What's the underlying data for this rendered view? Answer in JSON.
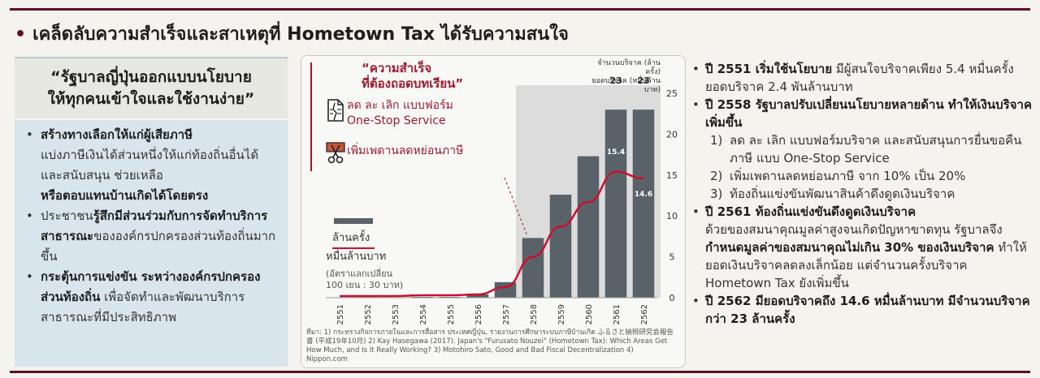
{
  "title": "เคล็ดลับความสำเร็จและสาเหตุที่ Hometown Tax ได้รับความสนใจ",
  "left": {
    "heading_line1": "“รัฐบาลญี่ปุ่นออกแบบนโยบาย",
    "heading_line2": "ให้ทุกคนเข้าใจและใช้งานง่าย”",
    "items": [
      {
        "bold1": "สร้างทางเลือกให้แก่ผู้เสียภาษี",
        "text": "แบ่งภาษีเงินได้ส่วนหนึ่งให้แก่ท้องถิ่นอื่นได้ และสนับสนุน ช่วยเหลือ",
        "bold2": "หรือตอบแทนบ้านเกิดได้โดยตรง"
      },
      {
        "text_pre": "ประชาชน",
        "bold1": "รู้สึกมีส่วนร่วมกับการจัดทำบริการสาธารณะ",
        "text": "ขององค์กรปกครองส่วนท้องถิ่นมากขึ้น"
      },
      {
        "bold1": "กระตุ้นการแข่งขัน ระหว่างองค์กรปกครองส่วนท้องถิ่น",
        "text": " เพื่อจัดทำและพัฒนาบริการสาธารณะที่มีประสิทธิภาพ"
      }
    ]
  },
  "chart_card": {
    "quote_line1": "“ความสำเร็จ",
    "quote_line2": "ที่ต้องถอดบทเรียน”",
    "lesson1_line1": "ลด ละ เลิก แบบฟอร์ม",
    "lesson1_line2": "One-Stop Service",
    "lesson2": "เพิ่มเพดานลดหย่อนภาษี",
    "icon1": "document-icon",
    "icon2": "scissors-icon",
    "right_axis_note_line1": "จำนวนบริจาค (ล้านครั้ง)",
    "right_axis_note_line2": "ยอดบริจาค (หมื่นล้านบาท)",
    "unit_count": "ล้านครั้ง",
    "unit_amount": "หมื่นล้านบาท",
    "exchange_line1": "(อัตราแลกเปลี่ยน",
    "exchange_line2": "100 เยน : 30 บาท)",
    "source": "ที่มา: 1) กระทรวงกิจการภายในและการสื่อสาร ประเทศญี่ปุ่น, รายงานการศึกษาระบบภาษีบ้านเกิด ふるさと納税研究会報告書 (平成19年10月) 2) Kay Hasegawa (2017). Japan's \"Furusato Nouzei\" (Hometown Tax): Which Areas Get How Much, and Is It Really Working? 3) Motohiro Sato, Good and Bad Fiscal Decentralization 4) Nippon.com"
  },
  "chart_data": {
    "type": "bar",
    "categories": [
      "2551",
      "2552",
      "2553",
      "2554",
      "2555",
      "2556",
      "2557",
      "2558",
      "2559",
      "2560",
      "2561",
      "2562"
    ],
    "series": [
      {
        "name": "ล้านครั้ง",
        "type": "bar",
        "values": [
          0.05,
          0.06,
          0.05,
          0.1,
          0.1,
          0.4,
          1.9,
          7.3,
          12.6,
          17.3,
          23,
          23
        ]
      },
      {
        "name": "หมื่นล้านบาท",
        "type": "line",
        "values": [
          0.2,
          0.2,
          0.2,
          0.3,
          0.3,
          0.4,
          1.3,
          5.0,
          8.7,
          11.7,
          15.4,
          14.6
        ]
      }
    ],
    "bar_labels": {
      "10": "23",
      "11": "23"
    },
    "line_labels": {
      "10": "15.4",
      "11": "14.6"
    },
    "yticks": [
      0,
      5,
      10,
      15,
      20,
      25
    ],
    "ylim": [
      0,
      25
    ],
    "colors": {
      "bar": "#5a6269",
      "line": "#c8102e",
      "highlight": "#dcdcdc"
    }
  },
  "right": {
    "p1_bold": "ปี 2551 เริ่มใช้นโยบาย",
    "p1_text": " มีผู้สนใจบริจาคเพียง 5.4 หมื่นครั้ง ยอดบริจาค 2.4 พันล้านบาท",
    "p2_bold": "ปี 2558 รัฐบาลปรับเปลี่ยนนโยบายหลายด้าน ทำให้เงินบริจาคเพิ่มขึ้น",
    "p2_subs": [
      {
        "num": "1)",
        "text": "ลด ละ เลิก แบบฟอร์มบริจาค และสนับสนุนการยื่นขอคืนภาษี แบบ One-Stop Service"
      },
      {
        "num": "2)",
        "text": "เพิ่มเพดานลดหย่อนภาษี จาก 10% เป็น 20%"
      },
      {
        "num": "3)",
        "text": "ท้องถิ่นแข่งขันพัฒนาสินค้าดึงดูดเงินบริจาค"
      }
    ],
    "p3_bold": "ปี 2561 ท้องถิ่นแข่งขันดึงดูดเงินบริจาค",
    "p3_text1": "ด้วยของสมนาคุณมูลค่าสูงจนเกิดปัญหาขาดทุน รัฐบาลจึง",
    "p3_bold2": "กำหนดมูลค่าของสมนาคุณไม่เกิน 30% ของเงินบริจาค",
    "p3_text2": " ทำให้ยอดเงินบริจาคลดลงเล็กน้อย แต่จำนวนครั้งบริจาค Hometown Tax ยังเพิ่มขึ้น",
    "p4_bold": "ปี 2562 มียอดบริจาคถึง 14.6 หมื่นล้านบาท มีจำนวนบริจาคกว่า 23 ล้านครั้ง"
  }
}
